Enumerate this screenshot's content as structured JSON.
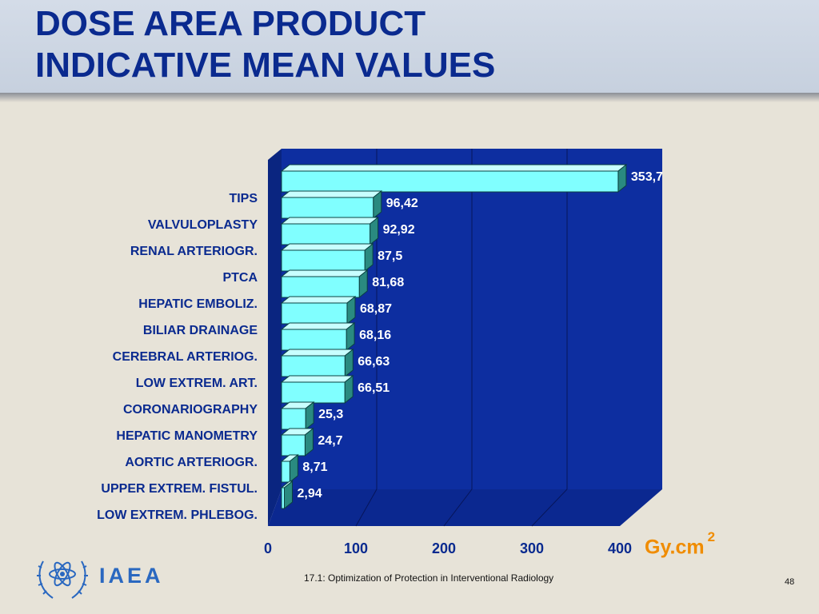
{
  "slide": {
    "title_line1": "DOSE AREA PRODUCT",
    "title_line2": "INDICATIVE MEAN VALUES",
    "unit": "Gy.cm",
    "unit_exp": "2",
    "org": "IAEA",
    "footer": "17.1: Optimization of Protection in Interventional Radiology",
    "page": "48"
  },
  "colors": {
    "title": "#0a2a8f",
    "plot_bg": "#0d2ea0",
    "bar_front": "#80ffff",
    "unit": "#f08c00",
    "org": "#2a68c0"
  },
  "chart_data": {
    "type": "bar",
    "orientation": "horizontal",
    "categories": [
      "TIPS",
      "VALVULOPLASTY",
      "RENAL ARTERIOGR.",
      "PTCA",
      "HEPATIC EMBOLIZ.",
      "BILIAR DRAINAGE",
      "CEREBRAL ARTERIOG.",
      "LOW EXTREM. ART.",
      "CORONARIOGRAPHY",
      "HEPATIC MANOMETRY",
      "AORTIC ARTERIOGR.",
      "UPPER EXTREM. FISTUL.",
      "LOW EXTREM. PHLEBOG."
    ],
    "values": [
      353.7,
      96.42,
      92.92,
      87.5,
      81.68,
      68.87,
      68.16,
      66.63,
      66.51,
      25.3,
      24.7,
      8.71,
      2.94
    ],
    "value_labels": [
      "353,7",
      "96,42",
      "92,92",
      "87,5",
      "81,68",
      "68,87",
      "68,16",
      "66,63",
      "66,51",
      "25,3",
      "24,7",
      "8,71",
      "2,94"
    ],
    "xticks": [
      "0",
      "100",
      "200",
      "300",
      "400"
    ],
    "xlim": [
      0,
      400
    ],
    "grid": true,
    "legend": "none"
  }
}
